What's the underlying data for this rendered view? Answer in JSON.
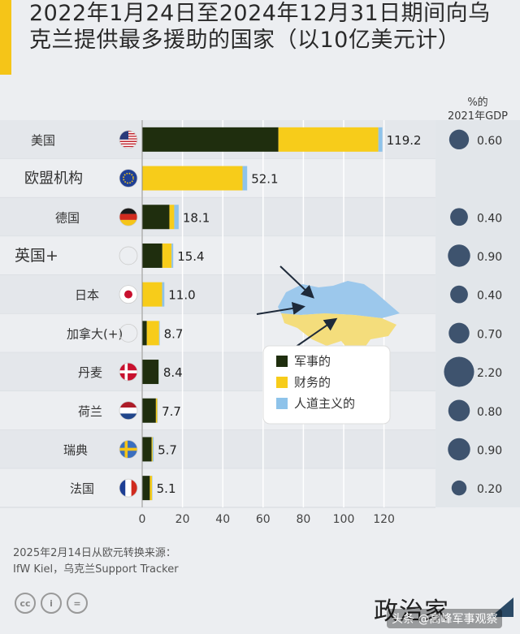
{
  "title": "2022年1月24日至2024年12月31日期间向乌克兰提供最多援助的国家（以10亿美元计）",
  "gdp_header": [
    "%的",
    "2021年GDP"
  ],
  "colors": {
    "military": "#1f2e0e",
    "financial": "#f7cc1a",
    "humanitarian": "#8ec3ea",
    "gdp_dot": "#3e536e",
    "title_accent": "#f5c518"
  },
  "chart_data": {
    "type": "bar",
    "orientation": "horizontal",
    "stacked": true,
    "categories": [
      "美国",
      "欧盟机构",
      "德国",
      "英国+",
      "日本",
      "加拿大(+)",
      "丹麦",
      "荷兰",
      "瑞典",
      "法国"
    ],
    "flags": [
      "us-flag-icon",
      "eu-flag-icon",
      "de-flag-icon",
      "uk-flag-icon",
      "jp-flag-icon",
      "ca-flag-icon",
      "dk-flag-icon",
      "nl-flag-icon",
      "se-flag-icon",
      "fr-flag-icon"
    ],
    "series": [
      {
        "name": "军事的",
        "color": "#1f2e0e",
        "values": [
          67.6,
          0,
          13.5,
          10.0,
          0.1,
          2.3,
          8.1,
          6.8,
          4.7,
          3.8
        ]
      },
      {
        "name": "财务的",
        "color": "#f7cc1a",
        "values": [
          49.6,
          49.8,
          2.4,
          4.6,
          9.8,
          6.1,
          0.1,
          0.7,
          0.5,
          1.1
        ]
      },
      {
        "name": "人道主义的",
        "color": "#8ec3ea",
        "values": [
          2.0,
          2.3,
          2.2,
          0.8,
          1.1,
          0.3,
          0.2,
          0.2,
          0.5,
          0.2
        ]
      }
    ],
    "totals": [
      "119.2",
      "52.1",
      "18.1",
      "15.4",
      "11.0",
      "8.7",
      "8.4",
      "7.7",
      "5.7",
      "5.1"
    ],
    "xlim": [
      0,
      125
    ],
    "xticks": [
      "0",
      "20",
      "40",
      "60",
      "80",
      "100",
      "120"
    ],
    "gdp_percent": [
      0.6,
      0,
      0.4,
      0.9,
      0.4,
      0.7,
      2.2,
      0.8,
      0.9,
      0.2
    ],
    "gdp_labels": [
      "0.60",
      "",
      "0.40",
      "0.90",
      "0.40",
      "0.70",
      "2.20",
      "0.80",
      "0.90",
      "0.20"
    ],
    "legend": [
      "军事的",
      "财务的",
      "人道主义的"
    ],
    "legend_position": "center-right",
    "grid": true
  },
  "footer": {
    "source_line1": "2025年2月14日从欧元转换来源：",
    "source_line2": "IfW Kiel，乌克兰Support Tracker",
    "publisher": "政治家",
    "watermark": "头条 @高峰军事观察"
  }
}
